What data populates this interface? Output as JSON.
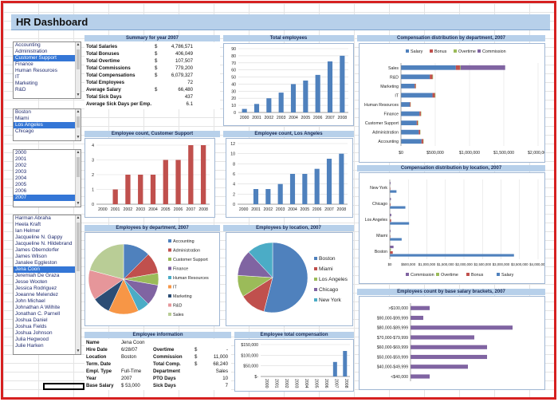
{
  "title": "HR Dashboard",
  "colors": {
    "blue": "#4f81bd",
    "red": "#c0504d",
    "green": "#9bbb59",
    "purple": "#8064a2",
    "cyan": "#4bacc6",
    "orange": "#f79646",
    "accent": "#d62020"
  },
  "lists": {
    "departments": [
      {
        "label": "Accounting",
        "sel": false
      },
      {
        "label": "Administration",
        "sel": false
      },
      {
        "label": "Customer Support",
        "sel": true
      },
      {
        "label": "Finance",
        "sel": false
      },
      {
        "label": "Human Resources",
        "sel": false
      },
      {
        "label": "IT",
        "sel": false
      },
      {
        "label": "Marketing",
        "sel": false
      },
      {
        "label": "R&D",
        "sel": false
      },
      {
        "label": "Sales",
        "sel": false
      }
    ],
    "locations": [
      {
        "label": "Boston",
        "sel": false
      },
      {
        "label": "Miami",
        "sel": false
      },
      {
        "label": "Los Angeles",
        "sel": true
      },
      {
        "label": "Chicago",
        "sel": false
      },
      {
        "label": "New York",
        "sel": false
      }
    ],
    "years": [
      {
        "label": "2000",
        "sel": false
      },
      {
        "label": "2001",
        "sel": false
      },
      {
        "label": "2002",
        "sel": false
      },
      {
        "label": "2003",
        "sel": false
      },
      {
        "label": "2004",
        "sel": false
      },
      {
        "label": "2005",
        "sel": false
      },
      {
        "label": "2006",
        "sel": false
      },
      {
        "label": "2007",
        "sel": true
      },
      {
        "label": "2008",
        "sel": false
      }
    ],
    "employees": [
      {
        "label": "Harman Abraha",
        "sel": false
      },
      {
        "label": "Heela Kraft",
        "sel": false
      },
      {
        "label": "Ian Helmer",
        "sel": false
      },
      {
        "label": "Jacqueline N. Gappy",
        "sel": false
      },
      {
        "label": "Jacqueline N. Hildebrand",
        "sel": false
      },
      {
        "label": "James Oberndorfer",
        "sel": false
      },
      {
        "label": "James Wilson",
        "sel": false
      },
      {
        "label": "Janalee Eggleston",
        "sel": false
      },
      {
        "label": "Jena Coon",
        "sel": true
      },
      {
        "label": "Jeremiah De Graza",
        "sel": false
      },
      {
        "label": "Jesse Wooten",
        "sel": false
      },
      {
        "label": "Jessica Rodriguez",
        "sel": false
      },
      {
        "label": "Joeanne Melendez",
        "sel": false
      },
      {
        "label": "John Michael",
        "sel": false
      },
      {
        "label": "Johnathan A Wilhite",
        "sel": false
      },
      {
        "label": "Jonathan C. Parnell",
        "sel": false
      },
      {
        "label": "Joshua Daniel",
        "sel": false
      },
      {
        "label": "Joshua Fields",
        "sel": false
      },
      {
        "label": "Joshua Johnson",
        "sel": false
      },
      {
        "label": "Julia Hegwood",
        "sel": false
      },
      {
        "label": "Julie Harken",
        "sel": false
      },
      {
        "label": "Julie Yost",
        "sel": false
      },
      {
        "label": "Katherine Battah",
        "sel": false
      }
    ]
  },
  "summary": {
    "header": "Summary for year 2007",
    "rows": [
      {
        "label": "Total Salaries",
        "cur": "$",
        "value": "4,786,571"
      },
      {
        "label": "Total Bonuses",
        "cur": "$",
        "value": "406,049"
      },
      {
        "label": "Total Overtime",
        "cur": "$",
        "value": "107,507"
      },
      {
        "label": "Total Commissions",
        "cur": "$",
        "value": "779,200"
      },
      {
        "label": "Total Compensations",
        "cur": "$",
        "value": "6,079,327"
      },
      {
        "label": "Total Employees",
        "cur": "",
        "value": "72"
      },
      {
        "label": "Average Salary",
        "cur": "$",
        "value": "66,480"
      },
      {
        "label": "Total Sick Days",
        "cur": "",
        "value": "437"
      },
      {
        "label": "Average Sick Days per Emp.",
        "cur": "",
        "value": "6.1"
      }
    ]
  },
  "emp_info": {
    "header": "Employee information",
    "left": [
      {
        "label": "Name",
        "value": "Jena Coon"
      },
      {
        "label": "Hire Date",
        "value": "6/28/07"
      },
      {
        "label": "Location",
        "value": "Boston"
      },
      {
        "label": "Term. Date",
        "value": ""
      },
      {
        "label": "Empl. Type",
        "value": "Full-Time"
      },
      {
        "label": "Year",
        "value": "2007"
      },
      {
        "label": "Base Salary",
        "value": "$ 53,000"
      }
    ],
    "right": [
      {
        "label": "",
        "cur": "",
        "value": ""
      },
      {
        "label": "Overtime",
        "cur": "$",
        "value": "-"
      },
      {
        "label": "Commission",
        "cur": "$",
        "value": "11,000"
      },
      {
        "label": "Total Comp.",
        "cur": "$",
        "value": "68,240"
      },
      {
        "label": "Department",
        "cur": "",
        "value": "Sales"
      },
      {
        "label": "PTO Days",
        "cur": "",
        "value": "10"
      },
      {
        "label": "Sick Days",
        "cur": "",
        "value": "7"
      }
    ]
  },
  "chart_data": [
    {
      "id": "total-employees",
      "type": "bar",
      "title": "Total employees",
      "categories": [
        "2000",
        "2001",
        "2002",
        "2003",
        "2004",
        "2005",
        "2006",
        "2007",
        "2008"
      ],
      "values": [
        5,
        12,
        20,
        28,
        40,
        45,
        53,
        72,
        80
      ],
      "ylim": [
        0,
        90
      ],
      "yticks": [
        0,
        10,
        20,
        30,
        40,
        50,
        60,
        70,
        80,
        90
      ],
      "color": "#4f81bd"
    },
    {
      "id": "count-cs",
      "type": "bar",
      "title": "Employee count, Customer Support",
      "categories": [
        "2000",
        "2001",
        "2002",
        "2003",
        "2004",
        "2005",
        "2006",
        "2007",
        "2008"
      ],
      "values": [
        0,
        1,
        2,
        2,
        2,
        3,
        3,
        4,
        4
      ],
      "ylim": [
        0,
        4
      ],
      "yticks": [
        0,
        1,
        2,
        3,
        4
      ],
      "color": "#c0504d"
    },
    {
      "id": "count-la",
      "type": "bar",
      "title": "Employee count, Los Angeles",
      "categories": [
        "2000",
        "2001",
        "2002",
        "2003",
        "2004",
        "2005",
        "2006",
        "2007",
        "2008"
      ],
      "values": [
        0,
        3,
        3,
        4,
        6,
        6,
        7,
        9,
        10
      ],
      "ylim": [
        0,
        12
      ],
      "yticks": [
        0,
        2,
        4,
        6,
        8,
        10,
        12
      ],
      "color": "#4f81bd"
    },
    {
      "id": "comp-dept",
      "type": "bar",
      "orientation": "horizontal",
      "stacked": true,
      "title": "Compensation distribution by department, 2007",
      "categories": [
        "Sales",
        "R&D",
        "Marketing",
        "IT",
        "Human Resources",
        "Finance",
        "Customer Support",
        "Administration",
        "Accounting"
      ],
      "series": [
        {
          "name": "Salary",
          "color": "#4f81bd",
          "values": [
            800000,
            420000,
            200000,
            460000,
            130000,
            270000,
            230000,
            260000,
            300000
          ]
        },
        {
          "name": "Bonus",
          "color": "#c0504d",
          "values": [
            60000,
            40000,
            15000,
            35000,
            10000,
            20000,
            15000,
            20000,
            25000
          ]
        },
        {
          "name": "Overtime",
          "color": "#9bbb59",
          "values": [
            10000,
            8000,
            4000,
            8000,
            3000,
            6000,
            8000,
            4000,
            5000
          ]
        },
        {
          "name": "Commission",
          "color": "#8064a2",
          "values": [
            650000,
            0,
            0,
            0,
            0,
            0,
            0,
            0,
            0
          ]
        }
      ],
      "xlim": [
        0,
        2000000
      ],
      "xticks": [
        "$0",
        "$500,000",
        "$1,000,000",
        "$1,500,000",
        "$2,000,000"
      ]
    },
    {
      "id": "comp-loc",
      "type": "bar",
      "orientation": "horizontal",
      "title": "Compensation distribution by location, 2007",
      "categories": [
        "New York",
        "Chicago",
        "Los Angeles",
        "Miami",
        "Boston"
      ],
      "series": [
        {
          "name": "Commission",
          "color": "#8064a2",
          "values": [
            20000,
            30000,
            40000,
            20000,
            100000
          ]
        },
        {
          "name": "Overtime",
          "color": "#9bbb59",
          "values": [
            5000,
            8000,
            10000,
            5000,
            30000
          ]
        },
        {
          "name": "Bonus",
          "color": "#c0504d",
          "values": [
            15000,
            20000,
            35000,
            15000,
            80000
          ]
        },
        {
          "name": "Salary",
          "color": "#4f81bd",
          "values": [
            180000,
            420000,
            520000,
            320000,
            3350000
          ]
        }
      ],
      "xlim": [
        0,
        4000000
      ],
      "xticks": [
        "$0",
        "$500,000",
        "$1,000,000",
        "$1,500,000",
        "$2,000,000",
        "$2,500,000",
        "$3,000,000",
        "$3,500,000",
        "$4,000,000"
      ]
    },
    {
      "id": "emp-dept-pie",
      "type": "pie",
      "title": "Employees by department, 2007",
      "labels": [
        "Accounting",
        "Administration",
        "Customer Support",
        "Finance",
        "Human Resources",
        "IT",
        "Marketing",
        "R&D",
        "Sales"
      ],
      "values": [
        9,
        7,
        4,
        7,
        4,
        10,
        6,
        10,
        15
      ],
      "colors": [
        "#4f81bd",
        "#c0504d",
        "#9bbb59",
        "#8064a2",
        "#4bacc6",
        "#f79646",
        "#2c4d75",
        "#e6969a",
        "#b9cd96"
      ]
    },
    {
      "id": "emp-loc-pie",
      "type": "pie",
      "title": "Employees by location, 2007",
      "labels": [
        "Boston",
        "Miami",
        "Los Angeles",
        "Chicago",
        "New York"
      ],
      "values": [
        54,
        12,
        10,
        12,
        12
      ],
      "colors": [
        "#4f81bd",
        "#c0504d",
        "#9bbb59",
        "#8064a2",
        "#4bacc6"
      ]
    },
    {
      "id": "total-comp",
      "type": "bar",
      "title": "Employee total compensation",
      "categories": [
        "2000",
        "2001",
        "2002",
        "2003",
        "2004",
        "2005",
        "2006",
        "2007",
        "2008"
      ],
      "values": [
        0,
        0,
        0,
        0,
        0,
        0,
        0,
        68240,
        120000
      ],
      "ylim": [
        0,
        150000
      ],
      "yticks": [
        "$-",
        "$50,000",
        "$100,000",
        "$150,000"
      ],
      "color": "#4f81bd"
    },
    {
      "id": "base-salary-brackets",
      "type": "bar",
      "orientation": "horizontal",
      "title": "Employees count by base salary brackets, 2007",
      "categories": [
        ">$100,000",
        "$90,000-$99,999",
        "$80,000-$89,999",
        "$70,000-$79,999",
        "$60,000-$69,999",
        "$50,000-$59,999",
        "$40,000-$49,999",
        "<$40,000"
      ],
      "values": [
        3,
        2,
        16,
        10,
        12,
        12,
        9,
        3
      ],
      "xlim": [
        0,
        20
      ],
      "color": "#8064a2"
    }
  ]
}
